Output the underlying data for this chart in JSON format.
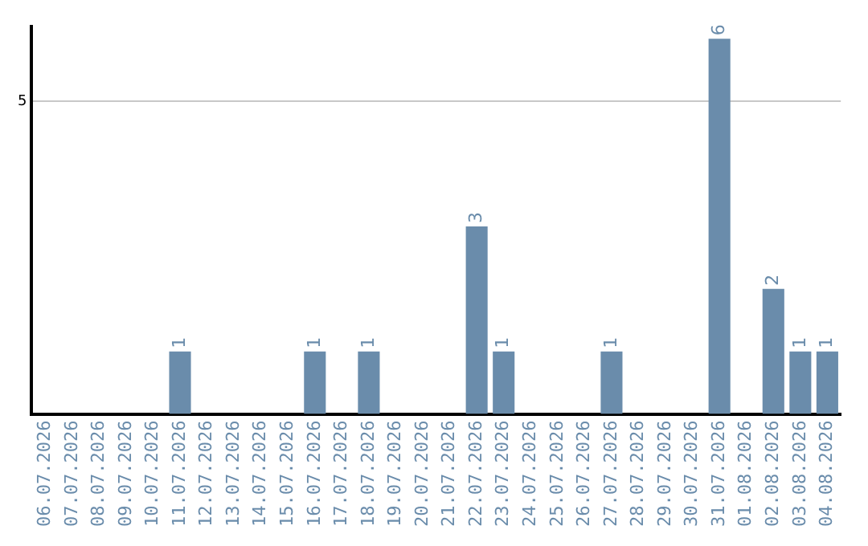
{
  "chart_data": {
    "type": "bar",
    "categories": [
      "06.07.2026",
      "07.07.2026",
      "08.07.2026",
      "09.07.2026",
      "10.07.2026",
      "11.07.2026",
      "12.07.2026",
      "13.07.2026",
      "14.07.2026",
      "15.07.2026",
      "16.07.2026",
      "17.07.2026",
      "18.07.2026",
      "19.07.2026",
      "20.07.2026",
      "21.07.2026",
      "22.07.2026",
      "23.07.2026",
      "24.07.2026",
      "25.07.2026",
      "26.07.2026",
      "27.07.2026",
      "28.07.2026",
      "29.07.2026",
      "30.07.2026",
      "31.07.2026",
      "01.08.2026",
      "02.08.2026",
      "03.08.2026",
      "04.08.2026"
    ],
    "values": [
      0,
      0,
      0,
      0,
      0,
      1,
      0,
      0,
      0,
      0,
      1,
      0,
      1,
      0,
      0,
      0,
      3,
      1,
      0,
      0,
      0,
      1,
      0,
      0,
      0,
      6,
      0,
      2,
      1,
      1
    ],
    "value_labels": [
      null,
      null,
      null,
      null,
      null,
      "1",
      null,
      null,
      null,
      null,
      "1",
      null,
      "1",
      null,
      null,
      null,
      "3",
      "1",
      null,
      null,
      null,
      "1",
      null,
      null,
      null,
      "6",
      null,
      "2",
      "1",
      "1"
    ],
    "color": "#6a8cab",
    "ylim": [
      0,
      6.2
    ],
    "yticks": [
      5
    ],
    "grid": "y",
    "legend": false
  }
}
